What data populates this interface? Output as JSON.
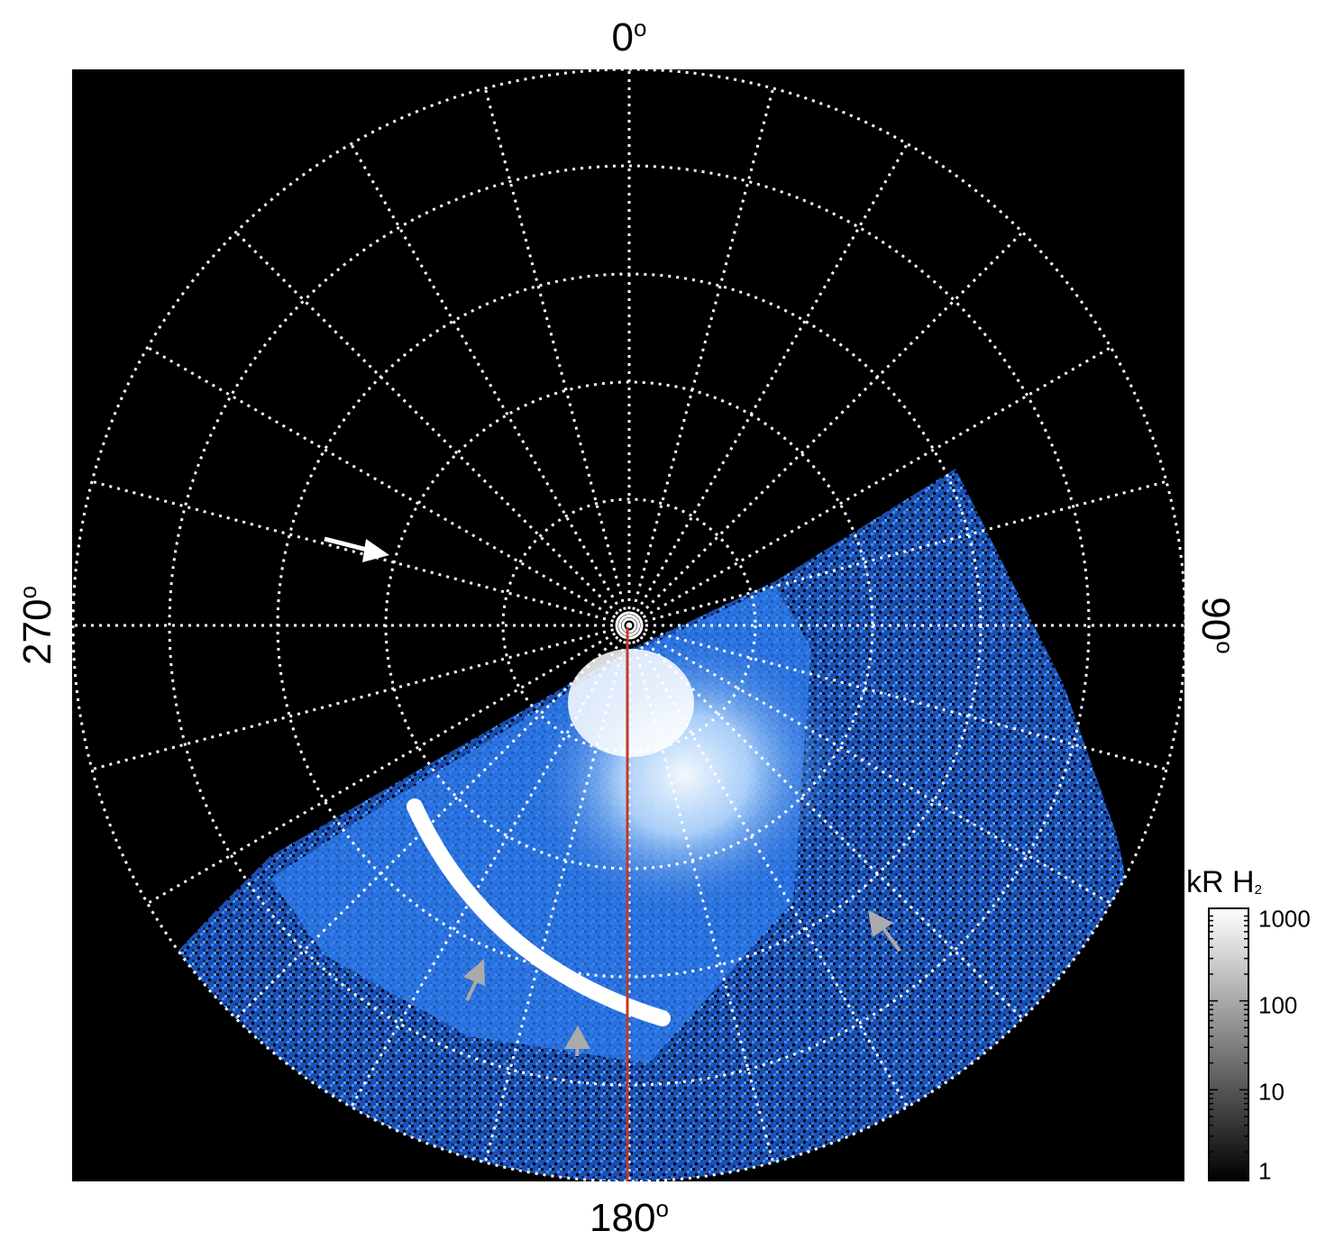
{
  "chart_data": {
    "type": "polar-map",
    "azimuth_labels": {
      "top": "0",
      "right": "90",
      "bottom": "180",
      "left": "270"
    },
    "degree_symbol": "o",
    "grid": "dotted white, circles and radial spokes every 15 degrees",
    "meridian_line": {
      "azimuth": 180,
      "color": "#c0392b"
    },
    "colorbar": {
      "title": "kR H",
      "title_subscript": "2",
      "scale": "log",
      "range": [
        1,
        1000
      ],
      "ticks": [
        "1",
        "10",
        "100",
        "1000"
      ],
      "colormap": "black-to-white grayscale"
    },
    "image_colormap": "black-blue-white",
    "arrows": [
      {
        "color": "#ffffff"
      },
      {
        "color": "#aaaaaa"
      },
      {
        "color": "#aaaaaa"
      },
      {
        "color": "#aaaaaa"
      }
    ]
  }
}
